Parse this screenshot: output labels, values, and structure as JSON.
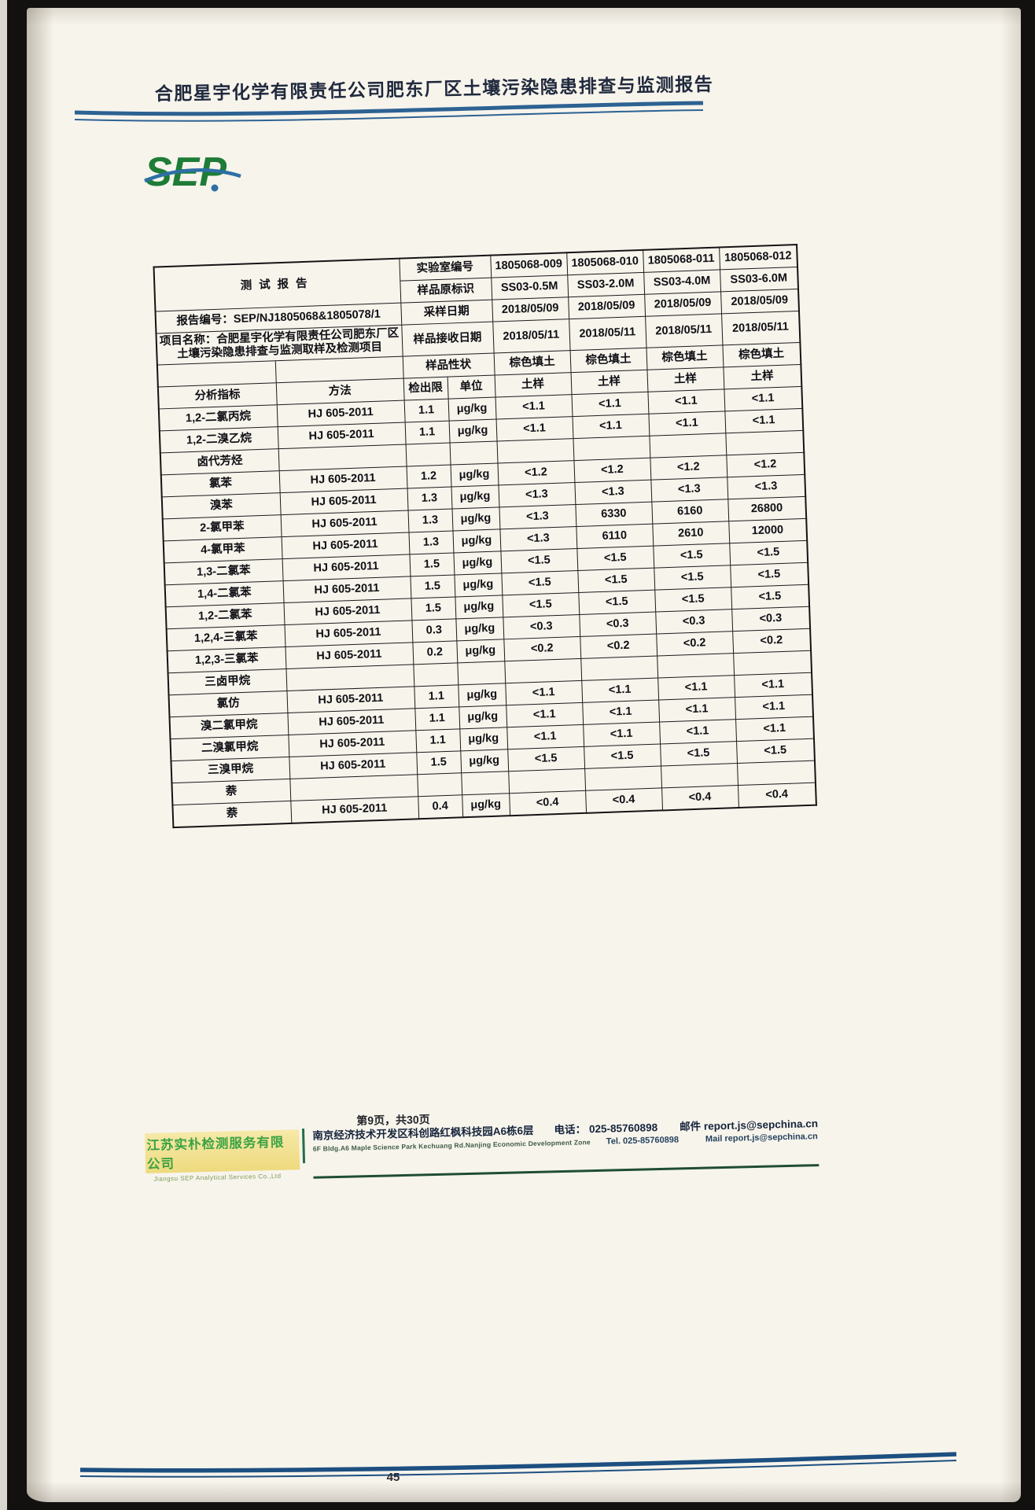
{
  "page": {
    "header_title": "合肥星宇化学有限责任公司肥东厂区土壤污染隐患排查与监测报告",
    "logo_text": "SEP",
    "page_note": "第9页，共30页",
    "page_number": "45"
  },
  "colors": {
    "brand_green": "#1e7c36",
    "brand_blue": "#2d6fa5",
    "rule_blue": "#1d4f80",
    "footer_green": "#3aa243",
    "highlight_yellow": "#eeda7e"
  },
  "report": {
    "title": "测试报告",
    "report_no_line": "报告编号：SEP/NJ1805068&1805078/1",
    "project_line": "项目名称：合肥星宇化学有限责任公司肥东厂区土壤污染隐患排查与监测取样及检测项目"
  },
  "sample_header": {
    "lab_id_label": "实验室编号",
    "lab_ids": [
      "1805068-009",
      "1805068-010",
      "1805068-011",
      "1805068-012"
    ],
    "sample_id_label": "样品原标识",
    "sample_ids": [
      "SS03-0.5M",
      "SS03-2.0M",
      "SS03-4.0M",
      "SS03-6.0M"
    ],
    "sampling_date_label": "采样日期",
    "sampling_dates": [
      "2018/05/09",
      "2018/05/09",
      "2018/05/09",
      "2018/05/09"
    ],
    "receive_date_label": "样品接收日期",
    "receive_dates": [
      "2018/05/11",
      "2018/05/11",
      "2018/05/11",
      "2018/05/11"
    ],
    "character_label": "样品性状",
    "characters": [
      "棕色填土",
      "棕色填土",
      "棕色填土",
      "棕色填土"
    ],
    "sample_types": [
      "土样",
      "土样",
      "土样",
      "土样"
    ]
  },
  "table": {
    "col_headers": {
      "analyte": "分析指标",
      "method": "方法",
      "mdl": "检出限",
      "unit": "单位"
    },
    "rows": [
      {
        "type": "data",
        "analyte": "1,2-二氯丙烷",
        "method": "HJ 605-2011",
        "mdl": "1.1",
        "unit": "μg/kg",
        "values": [
          "<1.1",
          "<1.1",
          "<1.1",
          "<1.1"
        ]
      },
      {
        "type": "data",
        "analyte": "1,2-二溴乙烷",
        "method": "HJ 605-2011",
        "mdl": "1.1",
        "unit": "μg/kg",
        "values": [
          "<1.1",
          "<1.1",
          "<1.1",
          "<1.1"
        ]
      },
      {
        "type": "section",
        "analyte": "卤代芳烃"
      },
      {
        "type": "data",
        "analyte": "氯苯",
        "method": "HJ 605-2011",
        "mdl": "1.2",
        "unit": "μg/kg",
        "values": [
          "<1.2",
          "<1.2",
          "<1.2",
          "<1.2"
        ]
      },
      {
        "type": "data",
        "analyte": "溴苯",
        "method": "HJ 605-2011",
        "mdl": "1.3",
        "unit": "μg/kg",
        "values": [
          "<1.3",
          "<1.3",
          "<1.3",
          "<1.3"
        ]
      },
      {
        "type": "data",
        "analyte": "2-氯甲苯",
        "method": "HJ 605-2011",
        "mdl": "1.3",
        "unit": "μg/kg",
        "values": [
          "<1.3",
          "6330",
          "6160",
          "26800"
        ]
      },
      {
        "type": "data",
        "analyte": "4-氯甲苯",
        "method": "HJ 605-2011",
        "mdl": "1.3",
        "unit": "μg/kg",
        "values": [
          "<1.3",
          "6110",
          "2610",
          "12000"
        ]
      },
      {
        "type": "data",
        "analyte": "1,3-二氯苯",
        "method": "HJ 605-2011",
        "mdl": "1.5",
        "unit": "μg/kg",
        "values": [
          "<1.5",
          "<1.5",
          "<1.5",
          "<1.5"
        ]
      },
      {
        "type": "data",
        "analyte": "1,4-二氯苯",
        "method": "HJ 605-2011",
        "mdl": "1.5",
        "unit": "μg/kg",
        "values": [
          "<1.5",
          "<1.5",
          "<1.5",
          "<1.5"
        ]
      },
      {
        "type": "data",
        "analyte": "1,2-二氯苯",
        "method": "HJ 605-2011",
        "mdl": "1.5",
        "unit": "μg/kg",
        "values": [
          "<1.5",
          "<1.5",
          "<1.5",
          "<1.5"
        ]
      },
      {
        "type": "data",
        "analyte": "1,2,4-三氯苯",
        "method": "HJ 605-2011",
        "mdl": "0.3",
        "unit": "μg/kg",
        "values": [
          "<0.3",
          "<0.3",
          "<0.3",
          "<0.3"
        ]
      },
      {
        "type": "data",
        "analyte": "1,2,3-三氯苯",
        "method": "HJ 605-2011",
        "mdl": "0.2",
        "unit": "μg/kg",
        "values": [
          "<0.2",
          "<0.2",
          "<0.2",
          "<0.2"
        ]
      },
      {
        "type": "section",
        "analyte": "三卤甲烷"
      },
      {
        "type": "data",
        "analyte": "氯仿",
        "method": "HJ 605-2011",
        "mdl": "1.1",
        "unit": "μg/kg",
        "values": [
          "<1.1",
          "<1.1",
          "<1.1",
          "<1.1"
        ]
      },
      {
        "type": "data",
        "analyte": "溴二氯甲烷",
        "method": "HJ 605-2011",
        "mdl": "1.1",
        "unit": "μg/kg",
        "values": [
          "<1.1",
          "<1.1",
          "<1.1",
          "<1.1"
        ]
      },
      {
        "type": "data",
        "analyte": "二溴氯甲烷",
        "method": "HJ 605-2011",
        "mdl": "1.1",
        "unit": "μg/kg",
        "values": [
          "<1.1",
          "<1.1",
          "<1.1",
          "<1.1"
        ]
      },
      {
        "type": "data",
        "analyte": "三溴甲烷",
        "method": "HJ 605-2011",
        "mdl": "1.5",
        "unit": "μg/kg",
        "values": [
          "<1.5",
          "<1.5",
          "<1.5",
          "<1.5"
        ]
      },
      {
        "type": "section",
        "analyte": "萘"
      },
      {
        "type": "data",
        "analyte": "萘",
        "method": "HJ 605-2011",
        "mdl": "0.4",
        "unit": "μg/kg",
        "values": [
          "<0.4",
          "<0.4",
          "<0.4",
          "<0.4"
        ]
      }
    ]
  },
  "footer": {
    "company_cn": "江苏实朴检测服务有限公司",
    "company_en": "Jiangsu SEP Analytical Services Co.,Ltd",
    "address_cn": "南京经济技术开发区科创路红枫科技园A6栋6层",
    "address_en": "6F Bldg.A6 Maple Science Park Kechuang Rd.Nanjing Economic Development Zone",
    "phone_label": "电话：",
    "phone": "025-85760898",
    "mail_label": "邮件",
    "mail": "report.js@sepchina.cn",
    "tel_label": "Tel.",
    "tel": "025-85760898",
    "mail_en_label": "Mail",
    "mail_en": "report.js@sepchina.cn"
  }
}
